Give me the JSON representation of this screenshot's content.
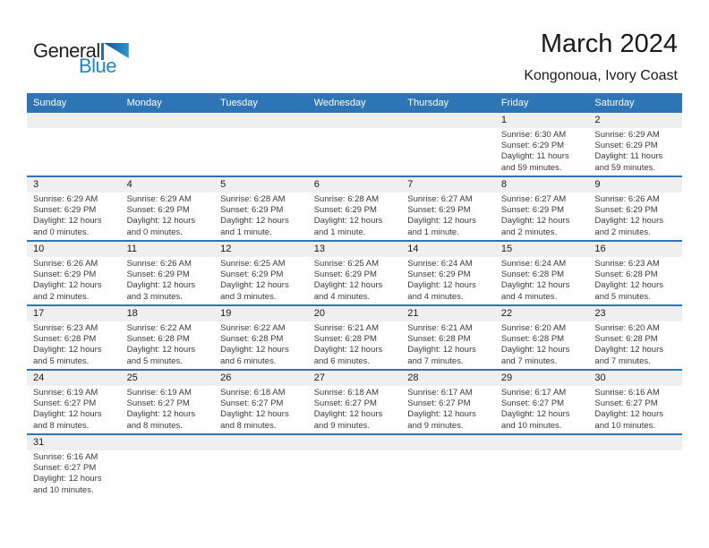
{
  "logo": {
    "word1": "General",
    "word2": "Blue"
  },
  "header": {
    "title": "March 2024",
    "subtitle": "Kongonoua, Ivory Coast"
  },
  "colors": {
    "accent_blue": "#2E75B6",
    "band_gray": "#EFEFEF",
    "logo_blue": "#1D86C8",
    "text_dark": "#3A3A3A"
  },
  "calendar": {
    "weekday_names": [
      "Sunday",
      "Monday",
      "Tuesday",
      "Wednesday",
      "Thursday",
      "Friday",
      "Saturday"
    ],
    "weeks": [
      [
        null,
        null,
        null,
        null,
        null,
        {
          "day": "1",
          "sunrise": "Sunrise: 6:30 AM",
          "sunset": "Sunset: 6:29 PM",
          "daylight1": "Daylight: 11 hours",
          "daylight2": "and 59 minutes."
        },
        {
          "day": "2",
          "sunrise": "Sunrise: 6:29 AM",
          "sunset": "Sunset: 6:29 PM",
          "daylight1": "Daylight: 11 hours",
          "daylight2": "and 59 minutes."
        }
      ],
      [
        {
          "day": "3",
          "sunrise": "Sunrise: 6:29 AM",
          "sunset": "Sunset: 6:29 PM",
          "daylight1": "Daylight: 12 hours",
          "daylight2": "and 0 minutes."
        },
        {
          "day": "4",
          "sunrise": "Sunrise: 6:29 AM",
          "sunset": "Sunset: 6:29 PM",
          "daylight1": "Daylight: 12 hours",
          "daylight2": "and 0 minutes."
        },
        {
          "day": "5",
          "sunrise": "Sunrise: 6:28 AM",
          "sunset": "Sunset: 6:29 PM",
          "daylight1": "Daylight: 12 hours",
          "daylight2": "and 1 minute."
        },
        {
          "day": "6",
          "sunrise": "Sunrise: 6:28 AM",
          "sunset": "Sunset: 6:29 PM",
          "daylight1": "Daylight: 12 hours",
          "daylight2": "and 1 minute."
        },
        {
          "day": "7",
          "sunrise": "Sunrise: 6:27 AM",
          "sunset": "Sunset: 6:29 PM",
          "daylight1": "Daylight: 12 hours",
          "daylight2": "and 1 minute."
        },
        {
          "day": "8",
          "sunrise": "Sunrise: 6:27 AM",
          "sunset": "Sunset: 6:29 PM",
          "daylight1": "Daylight: 12 hours",
          "daylight2": "and 2 minutes."
        },
        {
          "day": "9",
          "sunrise": "Sunrise: 6:26 AM",
          "sunset": "Sunset: 6:29 PM",
          "daylight1": "Daylight: 12 hours",
          "daylight2": "and 2 minutes."
        }
      ],
      [
        {
          "day": "10",
          "sunrise": "Sunrise: 6:26 AM",
          "sunset": "Sunset: 6:29 PM",
          "daylight1": "Daylight: 12 hours",
          "daylight2": "and 2 minutes."
        },
        {
          "day": "11",
          "sunrise": "Sunrise: 6:26 AM",
          "sunset": "Sunset: 6:29 PM",
          "daylight1": "Daylight: 12 hours",
          "daylight2": "and 3 minutes."
        },
        {
          "day": "12",
          "sunrise": "Sunrise: 6:25 AM",
          "sunset": "Sunset: 6:29 PM",
          "daylight1": "Daylight: 12 hours",
          "daylight2": "and 3 minutes."
        },
        {
          "day": "13",
          "sunrise": "Sunrise: 6:25 AM",
          "sunset": "Sunset: 6:29 PM",
          "daylight1": "Daylight: 12 hours",
          "daylight2": "and 4 minutes."
        },
        {
          "day": "14",
          "sunrise": "Sunrise: 6:24 AM",
          "sunset": "Sunset: 6:29 PM",
          "daylight1": "Daylight: 12 hours",
          "daylight2": "and 4 minutes."
        },
        {
          "day": "15",
          "sunrise": "Sunrise: 6:24 AM",
          "sunset": "Sunset: 6:28 PM",
          "daylight1": "Daylight: 12 hours",
          "daylight2": "and 4 minutes."
        },
        {
          "day": "16",
          "sunrise": "Sunrise: 6:23 AM",
          "sunset": "Sunset: 6:28 PM",
          "daylight1": "Daylight: 12 hours",
          "daylight2": "and 5 minutes."
        }
      ],
      [
        {
          "day": "17",
          "sunrise": "Sunrise: 6:23 AM",
          "sunset": "Sunset: 6:28 PM",
          "daylight1": "Daylight: 12 hours",
          "daylight2": "and 5 minutes."
        },
        {
          "day": "18",
          "sunrise": "Sunrise: 6:22 AM",
          "sunset": "Sunset: 6:28 PM",
          "daylight1": "Daylight: 12 hours",
          "daylight2": "and 5 minutes."
        },
        {
          "day": "19",
          "sunrise": "Sunrise: 6:22 AM",
          "sunset": "Sunset: 6:28 PM",
          "daylight1": "Daylight: 12 hours",
          "daylight2": "and 6 minutes."
        },
        {
          "day": "20",
          "sunrise": "Sunrise: 6:21 AM",
          "sunset": "Sunset: 6:28 PM",
          "daylight1": "Daylight: 12 hours",
          "daylight2": "and 6 minutes."
        },
        {
          "day": "21",
          "sunrise": "Sunrise: 6:21 AM",
          "sunset": "Sunset: 6:28 PM",
          "daylight1": "Daylight: 12 hours",
          "daylight2": "and 7 minutes."
        },
        {
          "day": "22",
          "sunrise": "Sunrise: 6:20 AM",
          "sunset": "Sunset: 6:28 PM",
          "daylight1": "Daylight: 12 hours",
          "daylight2": "and 7 minutes."
        },
        {
          "day": "23",
          "sunrise": "Sunrise: 6:20 AM",
          "sunset": "Sunset: 6:28 PM",
          "daylight1": "Daylight: 12 hours",
          "daylight2": "and 7 minutes."
        }
      ],
      [
        {
          "day": "24",
          "sunrise": "Sunrise: 6:19 AM",
          "sunset": "Sunset: 6:27 PM",
          "daylight1": "Daylight: 12 hours",
          "daylight2": "and 8 minutes."
        },
        {
          "day": "25",
          "sunrise": "Sunrise: 6:19 AM",
          "sunset": "Sunset: 6:27 PM",
          "daylight1": "Daylight: 12 hours",
          "daylight2": "and 8 minutes."
        },
        {
          "day": "26",
          "sunrise": "Sunrise: 6:18 AM",
          "sunset": "Sunset: 6:27 PM",
          "daylight1": "Daylight: 12 hours",
          "daylight2": "and 8 minutes."
        },
        {
          "day": "27",
          "sunrise": "Sunrise: 6:18 AM",
          "sunset": "Sunset: 6:27 PM",
          "daylight1": "Daylight: 12 hours",
          "daylight2": "and 9 minutes."
        },
        {
          "day": "28",
          "sunrise": "Sunrise: 6:17 AM",
          "sunset": "Sunset: 6:27 PM",
          "daylight1": "Daylight: 12 hours",
          "daylight2": "and 9 minutes."
        },
        {
          "day": "29",
          "sunrise": "Sunrise: 6:17 AM",
          "sunset": "Sunset: 6:27 PM",
          "daylight1": "Daylight: 12 hours",
          "daylight2": "and 10 minutes."
        },
        {
          "day": "30",
          "sunrise": "Sunrise: 6:16 AM",
          "sunset": "Sunset: 6:27 PM",
          "daylight1": "Daylight: 12 hours",
          "daylight2": "and 10 minutes."
        }
      ],
      [
        {
          "day": "31",
          "sunrise": "Sunrise: 6:16 AM",
          "sunset": "Sunset: 6:27 PM",
          "daylight1": "Daylight: 12 hours",
          "daylight2": "and 10 minutes."
        },
        null,
        null,
        null,
        null,
        null,
        null
      ]
    ]
  }
}
